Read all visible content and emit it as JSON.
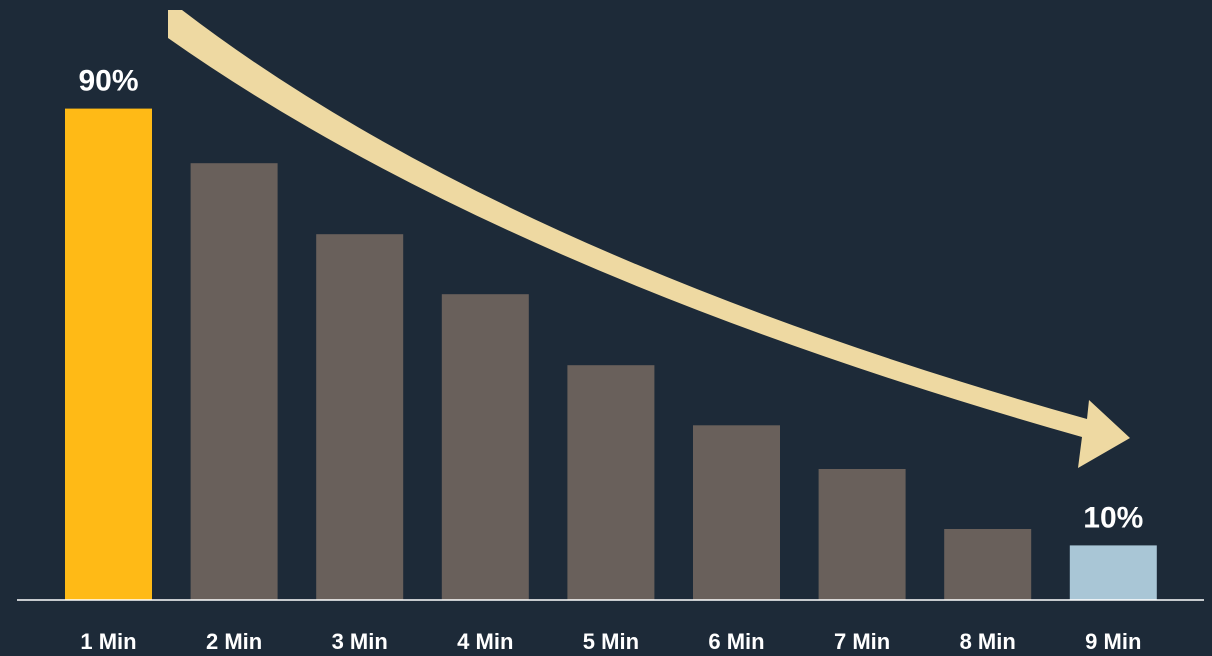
{
  "chart_data": {
    "type": "bar",
    "categories": [
      "1 Min",
      "2 Min",
      "3 Min",
      "4 Min",
      "5 Min",
      "6 Min",
      "7 Min",
      "8 Min",
      "9 Min"
    ],
    "values": [
      90,
      80,
      67,
      56,
      43,
      32,
      24,
      13,
      10
    ],
    "data_labels": [
      "90%",
      "",
      "",
      "",
      "",
      "",
      "",
      "",
      "10%"
    ],
    "ylim": [
      0,
      100
    ],
    "grid": false,
    "legend": "none",
    "colors": {
      "background": "#1d2a38",
      "first_bar": "#ffba16",
      "middle_bars": "#69605b",
      "last_bar": "#a9c6d6",
      "trend_arrow": "#eed9a2",
      "axis": "#ffffff"
    },
    "annotations": [
      "downward trend arrow from first to last bar"
    ]
  }
}
